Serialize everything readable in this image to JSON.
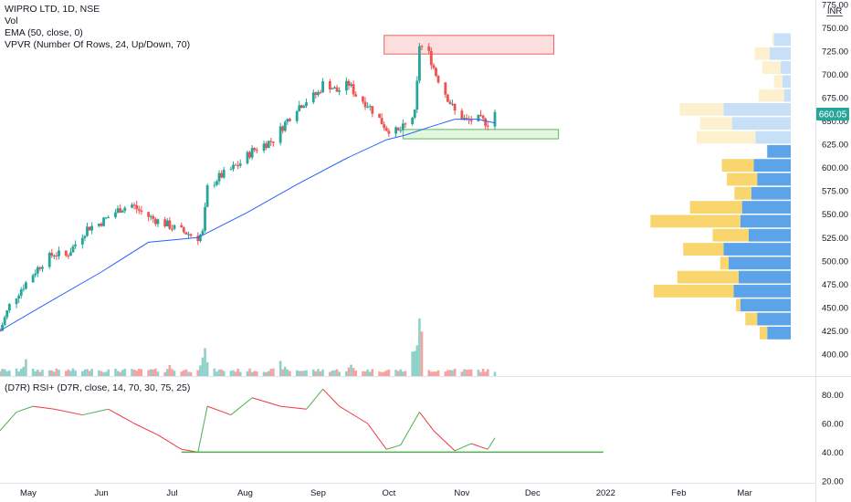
{
  "legend": {
    "symbol_line": "WIPRO LTD, 1D, NSE",
    "vol_label": "Vol",
    "ema_label": "EMA (50, close, 0)",
    "vpvr_label": "VPVR (Number Of Rows, 24, Up/Down, 70)",
    "rsi_label": "(D7R) RSI+ (D7R, close, 14, 70, 30, 75, 25)"
  },
  "price_axis": {
    "currency": "INR",
    "ticks": [
      "775.00",
      "750.00",
      "725.00",
      "700.00",
      "675.00",
      "650.00",
      "625.00",
      "600.00",
      "575.00",
      "550.00",
      "525.00",
      "500.00",
      "475.00",
      "450.00",
      "425.00",
      "400.00"
    ],
    "last_price_label": "660.05"
  },
  "rsi_axis": {
    "ticks": [
      "80.00",
      "60.00",
      "40.00",
      "20.00"
    ]
  },
  "time_axis": {
    "labels": [
      "May",
      "Jun",
      "Jul",
      "Aug",
      "Sep",
      "Oct",
      "Nov",
      "Dec",
      "2022",
      "Feb",
      "Mar"
    ]
  },
  "colors": {
    "up": "#26a69a",
    "down": "#ef5350",
    "ema": "#2962ff",
    "rsi_up": "#4caf50",
    "rsi_down": "#f23645",
    "vpvr_up_in": "#5ba4ea",
    "vpvr_down_in": "#f9d56e",
    "vpvr_up_out": "#c7e0f8",
    "vpvr_down_out": "#fdf0cf",
    "resistance_fill": "#fddede",
    "resistance_stroke": "#f06262",
    "support_fill": "#e4f6df",
    "support_stroke": "#5cb85c",
    "last_price": "#26a69a"
  },
  "chart_data": {
    "type": "candlestick",
    "symbol": "WIPRO LTD",
    "interval": "1D",
    "exchange": "NSE",
    "y_range": [
      392,
      780
    ],
    "date_range": [
      "2021-04-19",
      "2022-03-31"
    ],
    "close_series": {
      "dates": [
        "2021-04-19",
        "2021-04-23",
        "2021-04-28",
        "2021-05-03",
        "2021-05-07",
        "2021-05-12",
        "2021-05-17",
        "2021-05-21",
        "2021-05-26",
        "2021-05-31",
        "2021-06-04",
        "2021-06-09",
        "2021-06-14",
        "2021-06-18",
        "2021-06-23",
        "2021-06-28",
        "2021-07-02",
        "2021-07-07",
        "2021-07-12",
        "2021-07-14",
        "2021-07-16",
        "2021-07-21",
        "2021-07-26",
        "2021-07-30",
        "2021-08-04",
        "2021-08-09",
        "2021-08-13",
        "2021-08-18",
        "2021-08-23",
        "2021-08-27",
        "2021-09-01",
        "2021-09-03",
        "2021-09-06",
        "2021-09-09",
        "2021-09-14",
        "2021-09-17",
        "2021-09-22",
        "2021-09-27",
        "2021-09-30",
        "2021-10-05",
        "2021-10-08",
        "2021-10-12",
        "2021-10-13",
        "2021-10-14",
        "2021-10-18",
        "2021-10-21",
        "2021-10-26",
        "2021-10-29",
        "2021-11-03",
        "2021-11-08",
        "2021-11-12",
        "2021-11-15"
      ],
      "values": [
        425,
        452,
        470,
        486,
        498,
        508,
        505,
        518,
        535,
        540,
        547,
        556,
        560,
        552,
        545,
        540,
        535,
        530,
        525,
        530,
        578,
        590,
        598,
        605,
        618,
        625,
        630,
        648,
        665,
        672,
        680,
        690,
        688,
        682,
        690,
        678,
        668,
        652,
        642,
        638,
        645,
        658,
        690,
        732,
        722,
        700,
        675,
        660,
        650,
        652,
        648,
        660
      ]
    },
    "ema": {
      "dates": [
        "2021-04-19",
        "2021-05-10",
        "2021-06-01",
        "2021-06-21",
        "2021-07-12",
        "2021-08-02",
        "2021-08-23",
        "2021-09-13",
        "2021-09-30",
        "2021-10-08",
        "2021-10-20",
        "2021-10-29",
        "2021-11-08",
        "2021-11-15"
      ],
      "values": [
        425,
        456,
        488,
        520,
        525,
        552,
        582,
        610,
        630,
        635,
        645,
        652,
        652,
        648
      ]
    },
    "volume_relative": [
      {
        "date": "2021-04-30",
        "value": 0.3
      },
      {
        "date": "2021-05-28",
        "value": 0.2
      },
      {
        "date": "2021-06-30",
        "value": 0.2
      },
      {
        "date": "2021-07-15",
        "value": 0.45
      },
      {
        "date": "2021-08-16",
        "value": 0.25
      },
      {
        "date": "2021-09-15",
        "value": 0.2
      },
      {
        "date": "2021-10-14",
        "value": 1.0
      },
      {
        "date": "2021-10-29",
        "value": 0.15
      },
      {
        "date": "2021-11-15",
        "value": 0.1
      }
    ],
    "rsi": {
      "y_range": [
        18,
        88
      ],
      "dates": [
        "2021-04-19",
        "2021-04-26",
        "2021-05-03",
        "2021-05-12",
        "2021-05-24",
        "2021-06-04",
        "2021-06-15",
        "2021-06-25",
        "2021-07-05",
        "2021-07-12",
        "2021-07-16",
        "2021-07-26",
        "2021-08-04",
        "2021-08-16",
        "2021-08-27",
        "2021-09-03",
        "2021-09-10",
        "2021-09-22",
        "2021-09-30",
        "2021-10-06",
        "2021-10-14",
        "2021-10-20",
        "2021-10-29",
        "2021-11-05",
        "2021-11-12",
        "2021-11-15"
      ],
      "values": [
        55,
        68,
        72,
        70,
        66,
        70,
        60,
        52,
        42,
        40,
        72,
        66,
        78,
        72,
        70,
        84,
        72,
        60,
        42,
        45,
        68,
        55,
        41,
        46,
        42,
        50
      ]
    },
    "rsi_support_line": {
      "from": "2021-07-05",
      "to": "2021-12-31",
      "value": 40
    },
    "zones": [
      {
        "name": "resistance",
        "from": "2021-09-29",
        "to": "2021-12-10",
        "low": 722,
        "high": 742
      },
      {
        "name": "support",
        "from": "2021-10-07",
        "to": "2021-12-12",
        "low": 631,
        "high": 641
      }
    ],
    "vpvr": {
      "rows": [
        {
          "price": 737.5,
          "up": 20,
          "down": 2
        },
        {
          "price": 722.5,
          "up": 25,
          "down": 18
        },
        {
          "price": 707.5,
          "up": 12,
          "down": 22
        },
        {
          "price": 692.5,
          "up": 10,
          "down": 10
        },
        {
          "price": 677.5,
          "up": 8,
          "down": 30
        },
        {
          "price": 662.5,
          "up": 80,
          "down": 52
        },
        {
          "price": 647.5,
          "up": 70,
          "down": 38
        },
        {
          "price": 632.5,
          "up": 42,
          "down": 70
        },
        {
          "price": 617.5,
          "up": 28,
          "down": 0
        },
        {
          "price": 602.5,
          "up": 44,
          "down": 38
        },
        {
          "price": 587.5,
          "up": 40,
          "down": 36
        },
        {
          "price": 572.5,
          "up": 47,
          "down": 20
        },
        {
          "price": 557.5,
          "up": 58,
          "down": 62
        },
        {
          "price": 542.5,
          "up": 60,
          "down": 107
        },
        {
          "price": 527.5,
          "up": 50,
          "down": 43
        },
        {
          "price": 512.5,
          "up": 80,
          "down": 48
        },
        {
          "price": 497.5,
          "up": 74,
          "down": 10
        },
        {
          "price": 482.5,
          "up": 62,
          "down": 73
        },
        {
          "price": 467.5,
          "up": 68,
          "down": 95
        },
        {
          "price": 452.5,
          "up": 60,
          "down": 5
        },
        {
          "price": 437.5,
          "up": 40,
          "down": 14
        },
        {
          "price": 422.5,
          "up": 28,
          "down": 9
        }
      ]
    }
  }
}
